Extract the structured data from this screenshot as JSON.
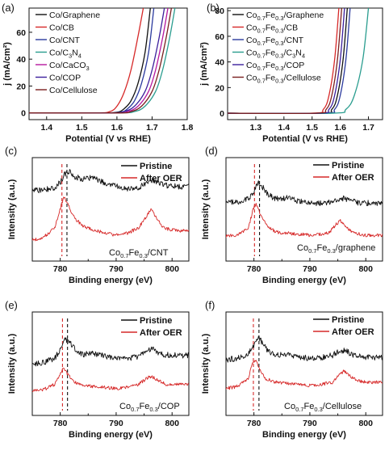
{
  "chart_data": [
    {
      "panel": "(a)",
      "type": "line",
      "xlabel": "Potential (V vs RHE)",
      "ylabel": "j (mA/cm²)",
      "xlim": [
        1.35,
        1.8
      ],
      "ylim": [
        -5,
        78
      ],
      "xticks": [
        "1.4",
        "1.5",
        "1.6",
        "1.7",
        "1.8"
      ],
      "yticks": [
        "0",
        "20",
        "40",
        "60"
      ],
      "xticks_v": [
        1.4,
        1.5,
        1.6,
        1.7,
        1.8
      ],
      "yticks_v": [
        0,
        20,
        40,
        60
      ],
      "legend_position": "top-left",
      "series": [
        {
          "name": "Co/Graphene",
          "label": [
            {
              "t": "Co/Graphene"
            }
          ],
          "color": "#111111",
          "x": [
            1.35,
            1.55,
            1.6,
            1.62,
            1.64,
            1.66,
            1.68,
            1.695
          ],
          "y": [
            0,
            0,
            0.5,
            3,
            9,
            22,
            45,
            78
          ]
        },
        {
          "name": "Co/CB",
          "label": [
            {
              "t": "Co/CB"
            }
          ],
          "color": "#d62828",
          "x": [
            1.35,
            1.54,
            1.58,
            1.6,
            1.62,
            1.64,
            1.66,
            1.675
          ],
          "y": [
            0,
            0,
            1,
            5,
            15,
            32,
            57,
            78
          ]
        },
        {
          "name": "Co/CNT",
          "label": [
            {
              "t": "Co/CNT"
            }
          ],
          "color": "#2b3a9e",
          "x": [
            1.35,
            1.56,
            1.61,
            1.63,
            1.65,
            1.67,
            1.69,
            1.705
          ],
          "y": [
            0,
            0,
            0.5,
            3,
            9,
            22,
            45,
            78
          ]
        },
        {
          "name": "Co/C3N4",
          "label": [
            {
              "t": "Co/C"
            },
            {
              "t": "3",
              "sub": true
            },
            {
              "t": "N"
            },
            {
              "t": "4",
              "sub": true
            }
          ],
          "color": "#2a9d8f",
          "x": [
            1.35,
            1.6,
            1.65,
            1.68,
            1.71,
            1.73,
            1.75,
            1.765
          ],
          "y": [
            0,
            0,
            1,
            5,
            16,
            32,
            56,
            78
          ]
        },
        {
          "name": "Co/CaCO3",
          "label": [
            {
              "t": "Co/CaCO"
            },
            {
              "t": "3",
              "sub": true
            }
          ],
          "color": "#b5179e",
          "x": [
            1.35,
            1.59,
            1.63,
            1.66,
            1.69,
            1.71,
            1.73,
            1.745
          ],
          "y": [
            0,
            0,
            1,
            5,
            16,
            32,
            56,
            78
          ]
        },
        {
          "name": "Co/COP",
          "label": [
            {
              "t": "Co/COP"
            }
          ],
          "color": "#3c1f9c",
          "x": [
            1.35,
            1.58,
            1.62,
            1.65,
            1.68,
            1.7,
            1.72,
            1.735
          ],
          "y": [
            0,
            0,
            1,
            5,
            16,
            32,
            56,
            78
          ]
        },
        {
          "name": "Co/Cellulose",
          "label": [
            {
              "t": "Co/Cellulose"
            }
          ],
          "color": "#7a1f1f",
          "x": [
            1.35,
            1.6,
            1.64,
            1.67,
            1.7,
            1.72,
            1.74,
            1.755
          ],
          "y": [
            0,
            0,
            1,
            5,
            16,
            32,
            56,
            78
          ]
        }
      ]
    },
    {
      "panel": "(b)",
      "type": "line",
      "xlabel": "Potential (V vs RHE)",
      "ylabel": "j (mA/cm²)",
      "xlim": [
        1.2,
        1.75
      ],
      "ylim": [
        -5,
        82
      ],
      "xticks": [
        "1.3",
        "1.4",
        "1.5",
        "1.6",
        "1.7"
      ],
      "yticks": [
        "0",
        "20",
        "40",
        "60",
        "80"
      ],
      "xticks_v": [
        1.3,
        1.4,
        1.5,
        1.6,
        1.7
      ],
      "yticks_v": [
        0,
        20,
        40,
        60,
        80
      ],
      "legend_position": "top-left",
      "series": [
        {
          "name": "Co0.7Fe0.3/Graphene",
          "label": [
            {
              "t": "Co"
            },
            {
              "t": "0.7",
              "sub": true
            },
            {
              "t": "Fe"
            },
            {
              "t": "0.3",
              "sub": true
            },
            {
              "t": "/Graphene"
            }
          ],
          "color": "#111111",
          "x": [
            1.2,
            1.53,
            1.57,
            1.59,
            1.61,
            1.625
          ],
          "y": [
            0,
            0,
            3,
            14,
            42,
            82
          ]
        },
        {
          "name": "Co0.7Fe0.3/CB",
          "label": [
            {
              "t": "Co"
            },
            {
              "t": "0.7",
              "sub": true
            },
            {
              "t": "Fe"
            },
            {
              "t": "0.3",
              "sub": true
            },
            {
              "t": "/CB"
            }
          ],
          "color": "#d62828",
          "x": [
            1.2,
            1.5,
            1.54,
            1.56,
            1.58,
            1.595
          ],
          "y": [
            0,
            0,
            3,
            14,
            42,
            82
          ]
        },
        {
          "name": "Co0.7Fe0.3/CNT",
          "label": [
            {
              "t": "Co"
            },
            {
              "t": "0.7",
              "sub": true
            },
            {
              "t": "Fe"
            },
            {
              "t": "0.3",
              "sub": true
            },
            {
              "t": "/CNT"
            }
          ],
          "color": "#2b3a9e",
          "x": [
            1.2,
            1.54,
            1.58,
            1.6,
            1.62,
            1.635
          ],
          "y": [
            0,
            0,
            3,
            14,
            42,
            82
          ]
        },
        {
          "name": "Co0.7Fe0.3/C3N4",
          "label": [
            {
              "t": "Co"
            },
            {
              "t": "0.7",
              "sub": true
            },
            {
              "t": "Fe"
            },
            {
              "t": "0.3",
              "sub": true
            },
            {
              "t": "/C"
            },
            {
              "t": "3",
              "sub": true
            },
            {
              "t": "N"
            },
            {
              "t": "4",
              "sub": true
            }
          ],
          "color": "#2a9d8f",
          "x": [
            1.2,
            1.57,
            1.62,
            1.65,
            1.68,
            1.7
          ],
          "y": [
            0,
            0,
            3,
            14,
            42,
            82
          ]
        },
        {
          "name": "Co0.7Fe0.3/COP",
          "label": [
            {
              "t": "Co"
            },
            {
              "t": "0.7",
              "sub": true
            },
            {
              "t": "Fe"
            },
            {
              "t": "0.3",
              "sub": true
            },
            {
              "t": "/COP"
            }
          ],
          "color": "#3c1f9c",
          "x": [
            1.2,
            1.52,
            1.56,
            1.58,
            1.6,
            1.615
          ],
          "y": [
            0,
            0,
            3,
            14,
            42,
            82
          ]
        },
        {
          "name": "Co0.7Fe0.3/Cellulose",
          "label": [
            {
              "t": "Co"
            },
            {
              "t": "0.7",
              "sub": true
            },
            {
              "t": "Fe"
            },
            {
              "t": "0.3",
              "sub": true
            },
            {
              "t": "/Cellulose"
            }
          ],
          "color": "#7a1f1f",
          "x": [
            1.2,
            1.51,
            1.55,
            1.57,
            1.59,
            1.605
          ],
          "y": [
            0,
            0,
            3,
            14,
            42,
            82
          ]
        }
      ]
    },
    {
      "panel": "(c)",
      "type": "line",
      "xlabel": "Binding energy (eV)",
      "ylabel": "Intensity (a.u.)",
      "xlim": [
        775,
        803
      ],
      "ylim": [
        0,
        10
      ],
      "xticks": [
        "780",
        "790",
        "800"
      ],
      "xticks_v": [
        780,
        790,
        800
      ],
      "legend_position": "top-right",
      "sample": [
        {
          "t": "Co"
        },
        {
          "t": "0.7",
          "sub": true
        },
        {
          "t": "Fe"
        },
        {
          "t": "0.3",
          "sub": true
        },
        {
          "t": "/CNT"
        }
      ],
      "dashed_lines": [
        {
          "x": 780.3,
          "color": "#d62828"
        },
        {
          "x": 781.2,
          "color": "#111111"
        }
      ],
      "series": [
        {
          "name": "Pristine",
          "color": "#111111",
          "x": [
            775,
            777,
            779,
            780,
            780.8,
            781.5,
            782.5,
            784,
            786,
            788,
            790,
            792,
            794,
            795.5,
            796.5,
            797.5,
            799,
            801,
            803
          ],
          "y": [
            6.8,
            6.9,
            7.1,
            7.6,
            8.4,
            8.7,
            8.2,
            7.9,
            8.1,
            7.5,
            7.2,
            7.0,
            7.1,
            7.6,
            7.8,
            7.5,
            7.3,
            7.2,
            7.2
          ]
        },
        {
          "name": "After OER",
          "color": "#d62828",
          "x": [
            775,
            777,
            779,
            780,
            780.6,
            781.3,
            782.5,
            784,
            786,
            788,
            790,
            792,
            794,
            795.5,
            796.3,
            797.2,
            798.5,
            800,
            803
          ],
          "y": [
            2.0,
            2.3,
            3.2,
            5.0,
            6.2,
            5.6,
            4.2,
            3.4,
            3.0,
            2.7,
            2.5,
            2.7,
            3.2,
            4.4,
            5.0,
            4.2,
            3.2,
            3.0,
            2.9
          ]
        }
      ]
    },
    {
      "panel": "(d)",
      "type": "line",
      "xlabel": "Binding energy (eV)",
      "ylabel": "Intensity (a.u.)",
      "xlim": [
        775,
        803
      ],
      "ylim": [
        0,
        10
      ],
      "xticks": [
        "780",
        "790",
        "800"
      ],
      "xticks_v": [
        780,
        790,
        800
      ],
      "legend_position": "top-right",
      "sample": [
        {
          "t": "Co"
        },
        {
          "t": "0.7",
          "sub": true
        },
        {
          "t": "Fe"
        },
        {
          "t": "0.3",
          "sub": true
        },
        {
          "t": "/graphene"
        }
      ],
      "dashed_lines": [
        {
          "x": 780.1,
          "color": "#d62828"
        },
        {
          "x": 781.0,
          "color": "#111111"
        }
      ],
      "series": [
        {
          "name": "Pristine",
          "color": "#111111",
          "x": [
            775,
            777,
            779,
            780,
            780.8,
            781.5,
            782.5,
            784,
            786,
            788,
            790,
            792,
            794,
            795.5,
            796.5,
            798,
            800,
            803
          ],
          "y": [
            5.6,
            5.7,
            6.0,
            6.8,
            7.6,
            7.2,
            6.4,
            6.0,
            6.1,
            5.8,
            5.6,
            5.6,
            5.7,
            6.1,
            6.0,
            5.7,
            5.6,
            5.6
          ]
        },
        {
          "name": "After OER",
          "color": "#d62828",
          "x": [
            775,
            777,
            779,
            779.8,
            780.4,
            781.1,
            782.3,
            784,
            786,
            788,
            790,
            792,
            793.5,
            794.8,
            795.5,
            796.5,
            798,
            800,
            803
          ],
          "y": [
            2.4,
            2.5,
            3.2,
            4.9,
            5.6,
            4.6,
            3.4,
            2.8,
            2.7,
            2.6,
            2.5,
            2.6,
            2.8,
            3.6,
            3.9,
            3.2,
            2.7,
            2.5,
            2.5
          ]
        }
      ]
    },
    {
      "panel": "(e)",
      "type": "line",
      "xlabel": "Binding energy (eV)",
      "ylabel": "Intensity (a.u.)",
      "xlim": [
        775,
        803
      ],
      "ylim": [
        0,
        10
      ],
      "xticks": [
        "780",
        "790",
        "800"
      ],
      "xticks_v": [
        780,
        790,
        800
      ],
      "legend_position": "top-right",
      "sample": [
        {
          "t": "Co"
        },
        {
          "t": "0.7",
          "sub": true
        },
        {
          "t": "Fe"
        },
        {
          "t": "0.3",
          "sub": true
        },
        {
          "t": "/COP"
        }
      ],
      "dashed_lines": [
        {
          "x": 780.4,
          "color": "#d62828"
        },
        {
          "x": 781.3,
          "color": "#111111"
        }
      ],
      "series": [
        {
          "name": "Pristine",
          "color": "#111111",
          "x": [
            775,
            777,
            779,
            780,
            780.9,
            781.6,
            782.6,
            784,
            786,
            788,
            790,
            792,
            794,
            795.5,
            796.5,
            798,
            800,
            803
          ],
          "y": [
            5.0,
            5.1,
            5.5,
            6.3,
            7.4,
            7.2,
            6.4,
            5.9,
            6.0,
            5.7,
            5.5,
            5.5,
            5.7,
            6.3,
            6.4,
            5.9,
            5.8,
            5.8
          ]
        },
        {
          "name": "After OER",
          "color": "#d62828",
          "x": [
            775,
            777,
            779,
            780,
            780.6,
            781.3,
            782.5,
            784,
            786,
            788,
            790,
            792,
            794,
            795.5,
            796.3,
            797.5,
            799,
            801,
            803
          ],
          "y": [
            2.4,
            2.5,
            3.0,
            4.1,
            4.6,
            4.0,
            3.2,
            2.9,
            2.8,
            2.7,
            2.6,
            2.7,
            3.0,
            3.6,
            3.8,
            3.4,
            3.0,
            3.0,
            3.0
          ]
        }
      ]
    },
    {
      "panel": "(f)",
      "type": "line",
      "xlabel": "Binding energy (eV)",
      "ylabel": "Intensity (a.u.)",
      "xlim": [
        775,
        803
      ],
      "ylim": [
        0,
        10
      ],
      "xticks": [
        "780",
        "790",
        "800"
      ],
      "xticks_v": [
        780,
        790,
        800
      ],
      "legend_position": "top-right",
      "sample": [
        {
          "t": "Co"
        },
        {
          "t": "0.7",
          "sub": true
        },
        {
          "t": "Fe"
        },
        {
          "t": "0.3",
          "sub": true
        },
        {
          "t": "/Cellulose"
        }
      ],
      "dashed_lines": [
        {
          "x": 779.9,
          "color": "#d62828"
        },
        {
          "x": 780.9,
          "color": "#111111"
        }
      ],
      "series": [
        {
          "name": "Pristine",
          "color": "#111111",
          "x": [
            775,
            777,
            779,
            780,
            780.7,
            781.4,
            782.5,
            784,
            786,
            788,
            790,
            792,
            794,
            795.5,
            796.5,
            798,
            800,
            803
          ],
          "y": [
            5.4,
            5.5,
            5.9,
            6.8,
            7.6,
            7.1,
            6.2,
            5.8,
            5.9,
            5.7,
            5.5,
            5.6,
            5.8,
            6.3,
            6.2,
            5.8,
            5.6,
            5.6
          ]
        },
        {
          "name": "After OER",
          "color": "#d62828",
          "x": [
            775,
            777,
            779,
            779.6,
            780.2,
            780.9,
            782,
            784,
            786,
            788,
            790,
            792,
            794,
            795.3,
            796.2,
            797.5,
            799,
            801,
            803
          ],
          "y": [
            2.6,
            2.8,
            3.6,
            4.8,
            5.4,
            4.6,
            3.6,
            3.2,
            3.1,
            3.0,
            2.9,
            3.0,
            3.2,
            4.0,
            4.3,
            3.7,
            3.3,
            3.2,
            3.2
          ]
        }
      ]
    }
  ]
}
